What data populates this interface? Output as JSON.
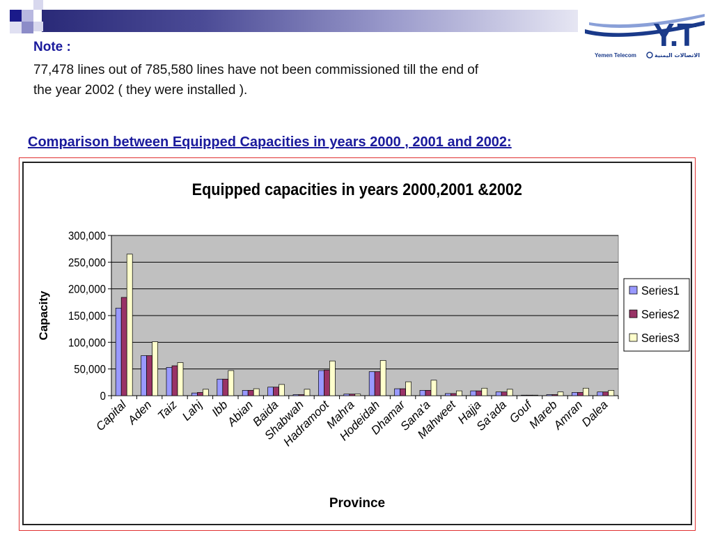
{
  "note": {
    "title": "Note :",
    "line1": "77,478 lines out of  785,580 lines have not been commissioned till the end of",
    "line2": "the year 2002 ( they were installed )."
  },
  "heading": "Comparison between Equipped Capacities in years 2000 , 2001 and 2002:",
  "logo": {
    "mark": "Y.T",
    "text_en": "Yemen Telecom",
    "text_ar": "الاتصالات اليمنية"
  },
  "colors": {
    "series1": "#9999ff",
    "series2": "#993366",
    "series3": "#ffffcc",
    "plot_bg": "#c0c0c0",
    "accent": "#1a1a9c"
  },
  "chart_data": {
    "type": "bar",
    "title": "Equipped capacities in years 2000,2001 &2002",
    "xlabel": "Province",
    "ylabel": "Capacity",
    "ylim": [
      0,
      300000
    ],
    "yticks": [
      "0",
      "50,000",
      "100,000",
      "150,000",
      "200,000",
      "250,000",
      "300,000"
    ],
    "grid": true,
    "legend_position": "right",
    "categories": [
      "Capital",
      "Aden",
      "Taiz",
      "Lahj",
      "Ibb",
      "Abian",
      "Baida",
      "Shabwah",
      "Hadramoot",
      "Mahra",
      "Hodeidah",
      "Dhamar",
      "Sana'a",
      "Mahweet",
      "Hajja",
      "Sa'ada",
      "Gouf",
      "Mareb",
      "Amran",
      "Dalea"
    ],
    "series": [
      {
        "name": "Series1",
        "values": [
          164000,
          75000,
          53000,
          5000,
          31000,
          10000,
          16000,
          2000,
          47000,
          3000,
          45000,
          13000,
          10000,
          4000,
          9000,
          7000,
          1000,
          2000,
          6000,
          7000
        ]
      },
      {
        "name": "Series2",
        "values": [
          184000,
          75000,
          56000,
          6000,
          31000,
          10000,
          16000,
          2000,
          48000,
          3000,
          45000,
          13000,
          10000,
          4000,
          9000,
          7000,
          1000,
          2000,
          6000,
          7000
        ]
      },
      {
        "name": "Series3",
        "values": [
          265000,
          101000,
          62000,
          12000,
          47000,
          13000,
          21000,
          12000,
          65000,
          3000,
          66000,
          26000,
          29000,
          9000,
          14000,
          12000,
          1000,
          7000,
          14000,
          10000
        ]
      }
    ]
  }
}
